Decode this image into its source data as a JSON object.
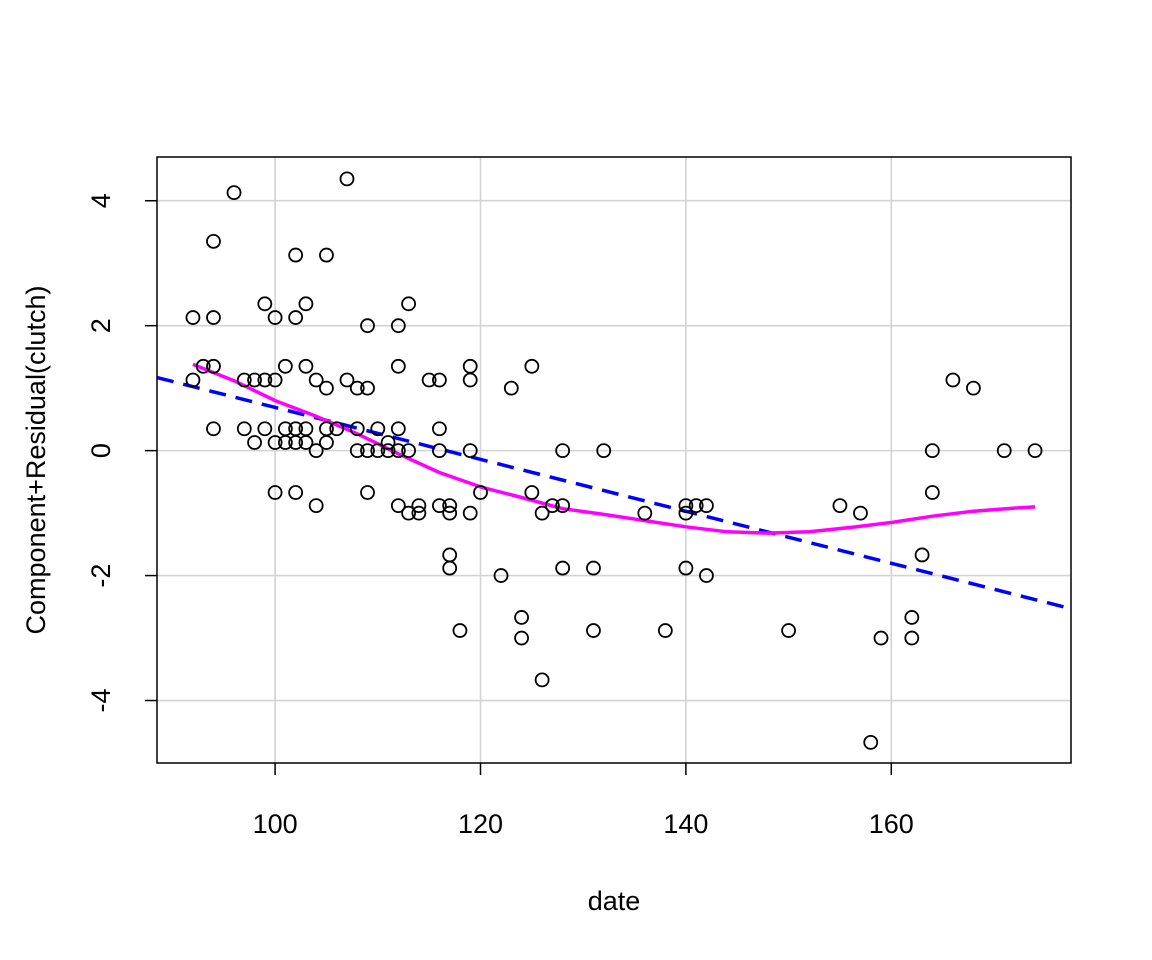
{
  "chart_data": {
    "type": "scatter",
    "title": "",
    "xlabel": "date",
    "ylabel": "Component+Residual(clutch)",
    "xlim": [
      88.5,
      177.5
    ],
    "ylim": [
      -5.0,
      4.7
    ],
    "x_ticks": [
      100,
      120,
      140,
      160
    ],
    "y_ticks": [
      -4,
      -2,
      0,
      2,
      4
    ],
    "x_tick_labels": [
      "100",
      "120",
      "140",
      "160"
    ],
    "y_tick_labels": [
      "-4",
      "-2",
      "0",
      "2",
      "4"
    ],
    "grid": true,
    "colors": {
      "points": "#000000",
      "fit_line": "#0000ff",
      "smooth_line": "#ff00ff",
      "grid": "#d3d3d3"
    },
    "points": [
      [
        92,
        2.13
      ],
      [
        92,
        1.13
      ],
      [
        93,
        1.35
      ],
      [
        94,
        3.35
      ],
      [
        94,
        2.13
      ],
      [
        94,
        1.35
      ],
      [
        94,
        0.35
      ],
      [
        96,
        4.13
      ],
      [
        97,
        1.13
      ],
      [
        97,
        0.35
      ],
      [
        98,
        1.13
      ],
      [
        98,
        0.13
      ],
      [
        99,
        2.35
      ],
      [
        99,
        1.13
      ],
      [
        99,
        0.35
      ],
      [
        100,
        2.13
      ],
      [
        100,
        1.13
      ],
      [
        100,
        0.13
      ],
      [
        100,
        -0.67
      ],
      [
        101,
        1.35
      ],
      [
        101,
        0.35
      ],
      [
        101,
        0.13
      ],
      [
        102,
        3.13
      ],
      [
        102,
        2.13
      ],
      [
        102,
        0.35
      ],
      [
        102,
        0.13
      ],
      [
        102,
        -0.67
      ],
      [
        103,
        2.35
      ],
      [
        103,
        1.35
      ],
      [
        103,
        0.35
      ],
      [
        103,
        0.13
      ],
      [
        104,
        1.13
      ],
      [
        104,
        0.0
      ],
      [
        104,
        -0.88
      ],
      [
        105,
        3.13
      ],
      [
        105,
        1.0
      ],
      [
        105,
        0.35
      ],
      [
        105,
        0.13
      ],
      [
        106,
        0.35
      ],
      [
        107,
        4.35
      ],
      [
        107,
        1.13
      ],
      [
        108,
        1.0
      ],
      [
        108,
        0.35
      ],
      [
        108,
        0.0
      ],
      [
        109,
        2.0
      ],
      [
        109,
        1.0
      ],
      [
        109,
        0.0
      ],
      [
        109,
        -0.67
      ],
      [
        110,
        0.35
      ],
      [
        110,
        0.0
      ],
      [
        111,
        0.13
      ],
      [
        111,
        0.0
      ],
      [
        112,
        2.0
      ],
      [
        112,
        1.35
      ],
      [
        112,
        0.35
      ],
      [
        112,
        0.0
      ],
      [
        112,
        -0.88
      ],
      [
        113,
        2.35
      ],
      [
        113,
        0.0
      ],
      [
        113,
        -1.0
      ],
      [
        114,
        -0.88
      ],
      [
        114,
        -1.0
      ],
      [
        115,
        1.13
      ],
      [
        116,
        1.13
      ],
      [
        116,
        0.35
      ],
      [
        116,
        0.0
      ],
      [
        116,
        -0.88
      ],
      [
        117,
        -0.88
      ],
      [
        117,
        -1.0
      ],
      [
        117,
        -1.67
      ],
      [
        117,
        -1.88
      ],
      [
        118,
        -2.88
      ],
      [
        119,
        1.35
      ],
      [
        119,
        1.13
      ],
      [
        119,
        0.0
      ],
      [
        119,
        -1.0
      ],
      [
        120,
        -0.67
      ],
      [
        122,
        -2.0
      ],
      [
        123,
        1.0
      ],
      [
        124,
        -2.67
      ],
      [
        124,
        -3.0
      ],
      [
        125,
        1.35
      ],
      [
        125,
        -0.67
      ],
      [
        126,
        -1.0
      ],
      [
        126,
        -3.67
      ],
      [
        127,
        -0.88
      ],
      [
        128,
        0.0
      ],
      [
        128,
        -0.88
      ],
      [
        128,
        -1.88
      ],
      [
        131,
        -1.88
      ],
      [
        131,
        -2.88
      ],
      [
        132,
        0.0
      ],
      [
        136,
        -1.0
      ],
      [
        138,
        -2.88
      ],
      [
        140,
        -0.88
      ],
      [
        140,
        -1.0
      ],
      [
        140,
        -1.88
      ],
      [
        141,
        -0.88
      ],
      [
        142,
        -0.88
      ],
      [
        142,
        -2.0
      ],
      [
        150,
        -2.88
      ],
      [
        155,
        -0.88
      ],
      [
        157,
        -1.0
      ],
      [
        158,
        -4.67
      ],
      [
        159,
        -3.0
      ],
      [
        162,
        -2.67
      ],
      [
        162,
        -3.0
      ],
      [
        163,
        -1.67
      ],
      [
        164,
        0.0
      ],
      [
        164,
        -0.67
      ],
      [
        166,
        1.13
      ],
      [
        168,
        1.0
      ],
      [
        171,
        0.0
      ],
      [
        174,
        0.0
      ]
    ],
    "fit_line": {
      "style": "dashed",
      "x": [
        88.5,
        177.5
      ],
      "y": [
        1.17,
        -2.53
      ]
    },
    "smooth_line": {
      "style": "solid",
      "x": [
        92,
        96,
        100,
        104,
        108,
        112,
        116,
        120,
        124,
        128,
        132,
        136,
        140,
        144,
        148,
        152,
        156,
        160,
        164,
        168,
        172,
        174
      ],
      "y": [
        1.38,
        1.12,
        0.8,
        0.55,
        0.27,
        -0.05,
        -0.35,
        -0.58,
        -0.75,
        -0.93,
        -1.02,
        -1.12,
        -1.22,
        -1.3,
        -1.32,
        -1.3,
        -1.23,
        -1.15,
        -1.05,
        -0.97,
        -0.92,
        -0.9
      ]
    }
  }
}
